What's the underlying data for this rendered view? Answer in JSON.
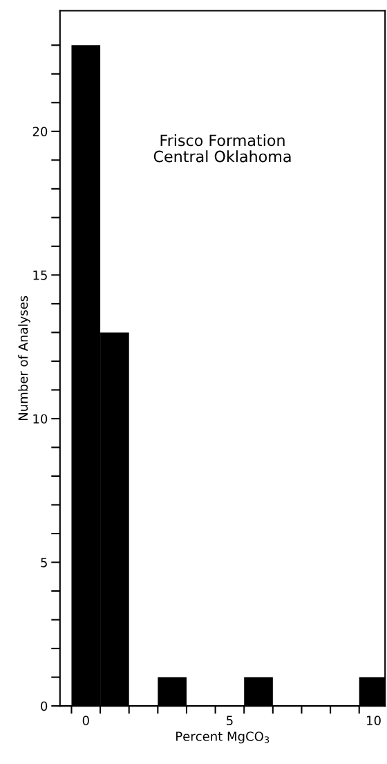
{
  "chart_data": {
    "type": "bar",
    "xlabel": "Percent MgCO$_{3}$",
    "ylabel": "Number of Analyses",
    "annotations": [
      "Frisco Formation\nCentral Oklahoma"
    ],
    "categories": [
      "0",
      null,
      null,
      null,
      null,
      "5",
      null,
      null,
      null,
      null,
      "10"
    ],
    "values": [
      23,
      13,
      0,
      1,
      0,
      0,
      1,
      0,
      0,
      0,
      1
    ],
    "color": "#000000",
    "ylim": [
      0,
      24.2
    ],
    "yticks": [
      0,
      {
        "value": 1,
        "label": null
      },
      {
        "value": 2,
        "label": null
      },
      {
        "value": 3,
        "label": null
      },
      {
        "value": 4,
        "label": null
      },
      5,
      {
        "value": 6,
        "label": null
      },
      {
        "value": 7,
        "label": null
      },
      {
        "value": 8,
        "label": null
      },
      {
        "value": 9,
        "label": null
      },
      10,
      {
        "value": 11,
        "label": null
      },
      {
        "value": 12,
        "label": null
      },
      {
        "value": 13,
        "label": null
      },
      {
        "value": 14,
        "label": null
      },
      15,
      {
        "value": 16,
        "label": null
      },
      {
        "value": 17,
        "label": null
      },
      {
        "value": 18,
        "label": null
      },
      {
        "value": 19,
        "label": null
      },
      20,
      {
        "value": 21,
        "label": null
      },
      {
        "value": 22,
        "label": null
      },
      {
        "value": 23,
        "label": null
      }
    ],
    "grid": false
  }
}
